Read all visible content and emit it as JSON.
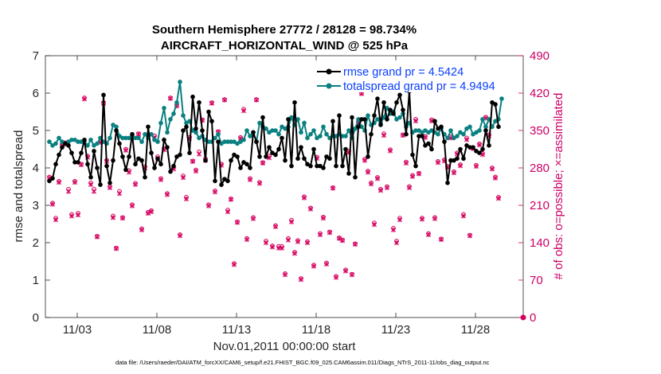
{
  "chart_data": {
    "type": "line",
    "title_line1": "Southern Hemisphere 27772 / 28128 = 98.734%",
    "title_line2": "AIRCRAFT_HORIZONTAL_WIND @ 525 hPa",
    "xlabel": "Nov.01,2011 00:00:00 start",
    "ylabel": "rmse and totalspread",
    "ylabel_right": "# of obs: o=possible; ×=assimilated",
    "xlim": [
      1,
      31
    ],
    "ylim": [
      0,
      7
    ],
    "ylim_right": [
      0,
      490
    ],
    "x_tick_labels": [
      "11/03",
      "11/08",
      "11/13",
      "11/18",
      "11/23",
      "11/28"
    ],
    "x_tick_values": [
      3,
      8,
      13,
      18,
      23,
      28
    ],
    "y_ticks": [
      "0",
      "1",
      "2",
      "3",
      "4",
      "5",
      "6",
      "7"
    ],
    "y_ticks_right": [
      "0",
      "70",
      "140",
      "210",
      "280",
      "350",
      "420",
      "490"
    ],
    "footnote": "data file: /Users/raeder/DAI/ATM_forcXX/CAM6_setup/f.e21.FHIST_BGC.f09_025.CAM6assim.011/Diags_NTrS_2011-11/obs_diag_output.nc",
    "colors": {
      "rmse": "#000000",
      "spread": "#0a8080",
      "obs": "#d6005f",
      "right_axis": "#cc0066",
      "legend_text": "#0a3dff"
    },
    "series": [
      {
        "name": "rmse grand pr = 4.5424",
        "values": [
          3.65,
          3.72,
          4.1,
          4.35,
          4.55,
          4.65,
          4.6,
          4.4,
          4.15,
          4.15,
          4.4,
          4.75,
          4.1,
          3.75,
          4.45,
          4.0,
          3.55,
          5.95,
          4.05,
          3.6,
          4.2,
          5.0,
          4.65,
          4.3,
          3.95,
          4.3,
          4.9,
          4.1,
          4.25,
          4.2,
          3.75,
          5.1,
          4.4,
          4.0,
          4.25,
          4.1,
          4.75,
          4.55,
          3.9,
          4.05,
          4.3,
          4.35,
          5.0,
          5.1,
          4.4,
          5.9,
          5.05,
          5.75,
          5.0,
          4.2,
          5.5,
          5.25,
          3.65,
          4.7,
          3.55,
          3.7,
          3.65,
          4.2,
          4.35,
          4.3,
          4.0,
          4.15,
          4.1,
          4.0,
          4.95,
          4.7,
          4.3,
          5.35,
          4.3,
          4.55,
          4.4,
          4.35,
          4.5,
          4.8,
          4.2,
          5.3,
          4.05,
          5.75,
          4.25,
          4.55,
          4.25,
          4.1,
          4.05,
          4.5,
          4.05,
          4.05,
          4.0,
          4.3,
          4.25,
          5.25,
          4.05,
          5.4,
          4.05,
          4.5,
          3.85,
          5.35,
          3.75,
          5.1,
          5.3,
          5.3,
          4.3,
          4.9,
          5.4,
          5.85,
          5.15,
          5.75,
          5.3,
          5.55,
          5.45,
          5.75,
          5.95,
          5.55,
          4.9,
          6.05,
          4.35,
          4.05,
          4.85,
          4.85,
          4.6,
          4.65,
          4.5,
          5.25,
          5.05,
          5.1,
          4.7,
          3.6,
          4.2,
          4.2,
          4.25,
          4.5,
          4.25,
          4.6,
          4.55,
          4.55,
          4.45,
          4.4,
          4.5,
          5.0,
          4.6,
          5.75,
          5.7,
          5.1
        ]
      },
      {
        "name": "totalspread grand pr = 4.9494",
        "values": [
          4.7,
          4.6,
          4.65,
          4.8,
          4.7,
          4.65,
          4.7,
          4.75,
          4.75,
          4.7,
          4.7,
          4.7,
          4.6,
          4.75,
          4.6,
          4.65,
          4.8,
          4.7,
          4.65,
          4.8,
          5.15,
          5.1,
          4.85,
          4.8,
          4.8,
          4.8,
          4.85,
          4.8,
          4.8,
          4.7,
          4.9,
          4.8,
          4.9,
          4.75,
          4.7,
          5.2,
          5.6,
          4.95,
          5.3,
          5.45,
          5.75,
          6.3,
          5.4,
          5.2,
          5.25,
          5.0,
          4.95,
          4.8,
          4.85,
          4.75,
          4.7,
          4.7,
          4.8,
          4.9,
          4.65,
          4.7,
          4.7,
          4.7,
          4.7,
          4.65,
          4.7,
          4.75,
          5.0,
          4.85,
          4.95,
          4.7,
          5.2,
          5.1,
          5.05,
          4.95,
          5.0,
          5.0,
          4.9,
          5.1,
          5.05,
          5.1,
          5.35,
          5.15,
          5.3,
          4.95,
          5.2,
          4.8,
          4.9,
          5.0,
          4.8,
          4.85,
          5.1,
          4.9,
          4.8,
          4.85,
          4.85,
          4.9,
          4.85,
          4.85,
          5.0,
          4.8,
          5.05,
          5.3,
          5.1,
          5.0,
          5.4,
          5.15,
          5.2,
          5.3,
          5.2,
          5.35,
          5.6,
          5.45,
          5.5,
          5.3,
          5.35,
          5.45,
          5.1,
          5.2,
          4.95,
          5.0,
          5.0,
          4.95,
          5.0,
          4.95,
          5.0,
          4.95,
          4.9,
          5.05,
          4.9,
          4.8,
          5.0,
          4.8,
          4.85,
          4.95,
          4.9,
          5.05,
          5.1,
          4.9,
          4.95,
          5.0,
          5.3,
          5.1,
          5.3,
          5.1,
          5.25,
          5.3,
          5.85
        ]
      },
      {
        "name": "obs possible",
        "values": [
          263,
          214,
          186,
          255,
          323,
          327,
          240,
          193,
          255,
          195,
          287,
          411,
          302,
          252,
          240,
          152,
          330,
          402,
          294,
          245,
          190,
          130,
          236,
          187,
          315,
          275,
          211,
          251,
          344,
          166,
          282,
          197,
          200,
          340,
          301,
          260,
          316,
          232,
          411,
          280,
          397,
          155,
          265,
          225,
          337,
          293,
          276,
          310,
          370,
          297,
          211,
          402,
          237,
          348,
          287,
          408,
          201,
          222,
          101,
          179,
          337,
          390,
          148,
          260,
          187,
          408,
          253,
          290,
          143,
          302,
          134,
          172,
          133,
          133,
          82,
          148,
          182,
          122,
          144,
          73,
          226,
          142,
          205,
          98,
          300,
          157,
          188,
          102,
          160,
          243,
          77,
          149,
          145,
          89,
          311,
          81,
          138,
          366,
          420,
          296,
          274,
          252,
          177,
          262,
          240,
          344,
          245,
          314,
          167,
          143,
          186,
          342,
          291,
          245,
          266,
          371,
          270,
          186,
          339,
          157,
          370,
          187,
          292,
          147,
          295,
          283,
          338,
          273,
          308,
          286,
          193,
          336,
          154,
          317,
          285,
          325,
          307,
          375,
          342,
          280,
          263,
          225
        ]
      },
      {
        "name": "obs assimilated",
        "values": [
          261,
          212,
          183,
          253,
          322,
          324,
          236,
          190,
          253,
          192,
          286,
          409,
          300,
          249,
          236,
          151,
          328,
          401,
          292,
          243,
          187,
          129,
          232,
          186,
          313,
          272,
          209,
          249,
          343,
          164,
          280,
          195,
          198,
          337,
          298,
          258,
          314,
          230,
          410,
          278,
          396,
          153,
          262,
          222,
          335,
          292,
          274,
          306,
          369,
          294,
          209,
          401,
          235,
          347,
          285,
          407,
          198,
          221,
          99,
          178,
          335,
          387,
          146,
          258,
          185,
          407,
          251,
          289,
          140,
          299,
          132,
          170,
          130,
          130,
          80,
          145,
          179,
          120,
          142,
          71,
          224,
          140,
          203,
          96,
          298,
          155,
          186,
          100,
          159,
          242,
          75,
          148,
          144,
          87,
          309,
          80,
          137,
          364,
          419,
          294,
          272,
          250,
          174,
          260,
          238,
          341,
          243,
          312,
          164,
          140,
          183,
          341,
          289,
          243,
          264,
          368,
          269,
          184,
          337,
          155,
          368,
          185,
          290,
          146,
          293,
          281,
          336,
          271,
          306,
          284,
          190,
          333,
          153,
          316,
          283,
          323,
          305,
          373,
          340,
          278,
          261,
          223
        ]
      }
    ],
    "last_obs_possible": 0
  }
}
